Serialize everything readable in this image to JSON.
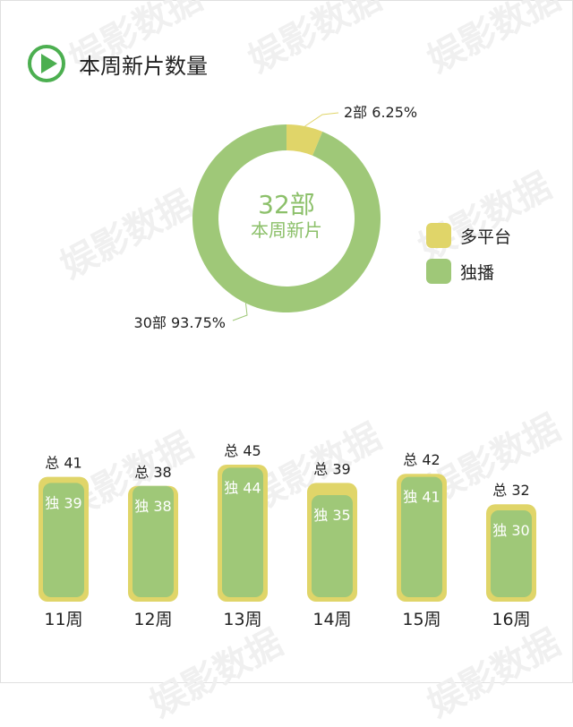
{
  "header": {
    "title": "本周新片数量",
    "icon": "play-icon"
  },
  "watermark_text": "娱影数据",
  "colors": {
    "green": "#9fc878",
    "yellow": "#e0d569",
    "accent": "#4caf50",
    "center_text": "#8cc06a"
  },
  "chart_data": [
    {
      "type": "pie",
      "center_value": "32部",
      "center_label": "本周新片",
      "slices": [
        {
          "name": "多平台",
          "value": 2,
          "count_label": "2部",
          "percent_label": "6.25%",
          "color": "#e0d569"
        },
        {
          "name": "独播",
          "value": 30,
          "count_label": "30部",
          "percent_label": "93.75%",
          "color": "#9fc878"
        }
      ],
      "legend": "right"
    },
    {
      "type": "bar",
      "categories": [
        "11周",
        "12周",
        "13周",
        "14周",
        "15周",
        "16周"
      ],
      "series": [
        {
          "name": "总",
          "values": [
            41,
            38,
            45,
            39,
            42,
            32
          ]
        },
        {
          "name": "独",
          "values": [
            39,
            38,
            44,
            35,
            41,
            30
          ]
        }
      ]
    }
  ]
}
